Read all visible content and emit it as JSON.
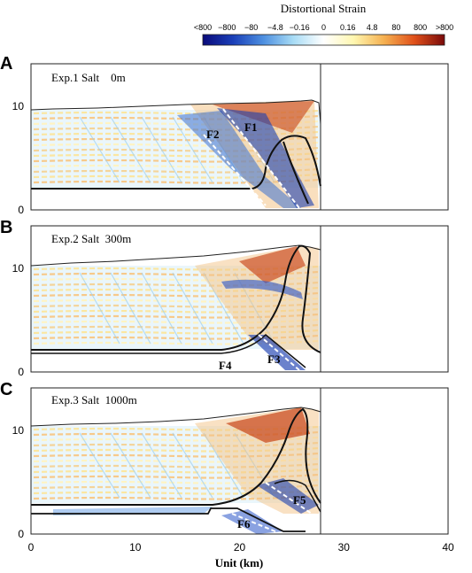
{
  "colorbar": {
    "title": "Distortional Strain",
    "ticks": [
      "<800",
      "−800",
      "−80",
      "−4.8",
      "−0.16",
      "0",
      "0.16",
      "4.8",
      "80",
      "800",
      ">800"
    ],
    "colors": [
      "#0a0a7a",
      "#1a3fb8",
      "#4d8fe0",
      "#a8dcf5",
      "#ffffff",
      "#fff7b0",
      "#f5b050",
      "#e0501a",
      "#7a0a0a"
    ]
  },
  "x_axis": {
    "title": "Unit (km)",
    "ticks": [
      "0",
      "10",
      "20",
      "30",
      "40"
    ]
  },
  "panels": [
    {
      "letter": "A",
      "label": "Exp.1 Salt    0m",
      "y_ticks": [
        "0",
        "10"
      ],
      "faults": [
        "F1",
        "F2"
      ]
    },
    {
      "letter": "B",
      "label": "Exp.2 Salt  300m",
      "y_ticks": [
        "0",
        "10"
      ],
      "faults": [
        "F3",
        "F4"
      ]
    },
    {
      "letter": "C",
      "label": "Exp.3 Salt  1000m",
      "y_ticks": [
        "0",
        "10"
      ],
      "faults": [
        "F5",
        "F6"
      ]
    }
  ],
  "chart_data": [
    {
      "type": "section",
      "panel": "A",
      "title": "Exp.1 Salt 0m",
      "xlabel": "Unit (km)",
      "xlim": [
        0,
        40
      ],
      "ylim": [
        0,
        12.5
      ],
      "surface_height_km": 9.5,
      "wedge_toe_km": 28,
      "fault_labels": [
        "F1",
        "F2"
      ]
    },
    {
      "type": "section",
      "panel": "B",
      "title": "Exp.2 Salt 300m",
      "xlabel": "Unit (km)",
      "xlim": [
        0,
        40
      ],
      "ylim": [
        0,
        12.5
      ],
      "surface_height_km": 10.2,
      "wedge_toe_km": 28,
      "fault_labels": [
        "F3",
        "F4"
      ]
    },
    {
      "type": "section",
      "panel": "C",
      "title": "Exp.3 Salt 1000m",
      "xlabel": "Unit (km)",
      "xlim": [
        0,
        40
      ],
      "ylim": [
        0,
        12.5
      ],
      "surface_height_km": 10.6,
      "wedge_toe_km": 28,
      "fault_labels": [
        "F5",
        "F6"
      ]
    }
  ]
}
